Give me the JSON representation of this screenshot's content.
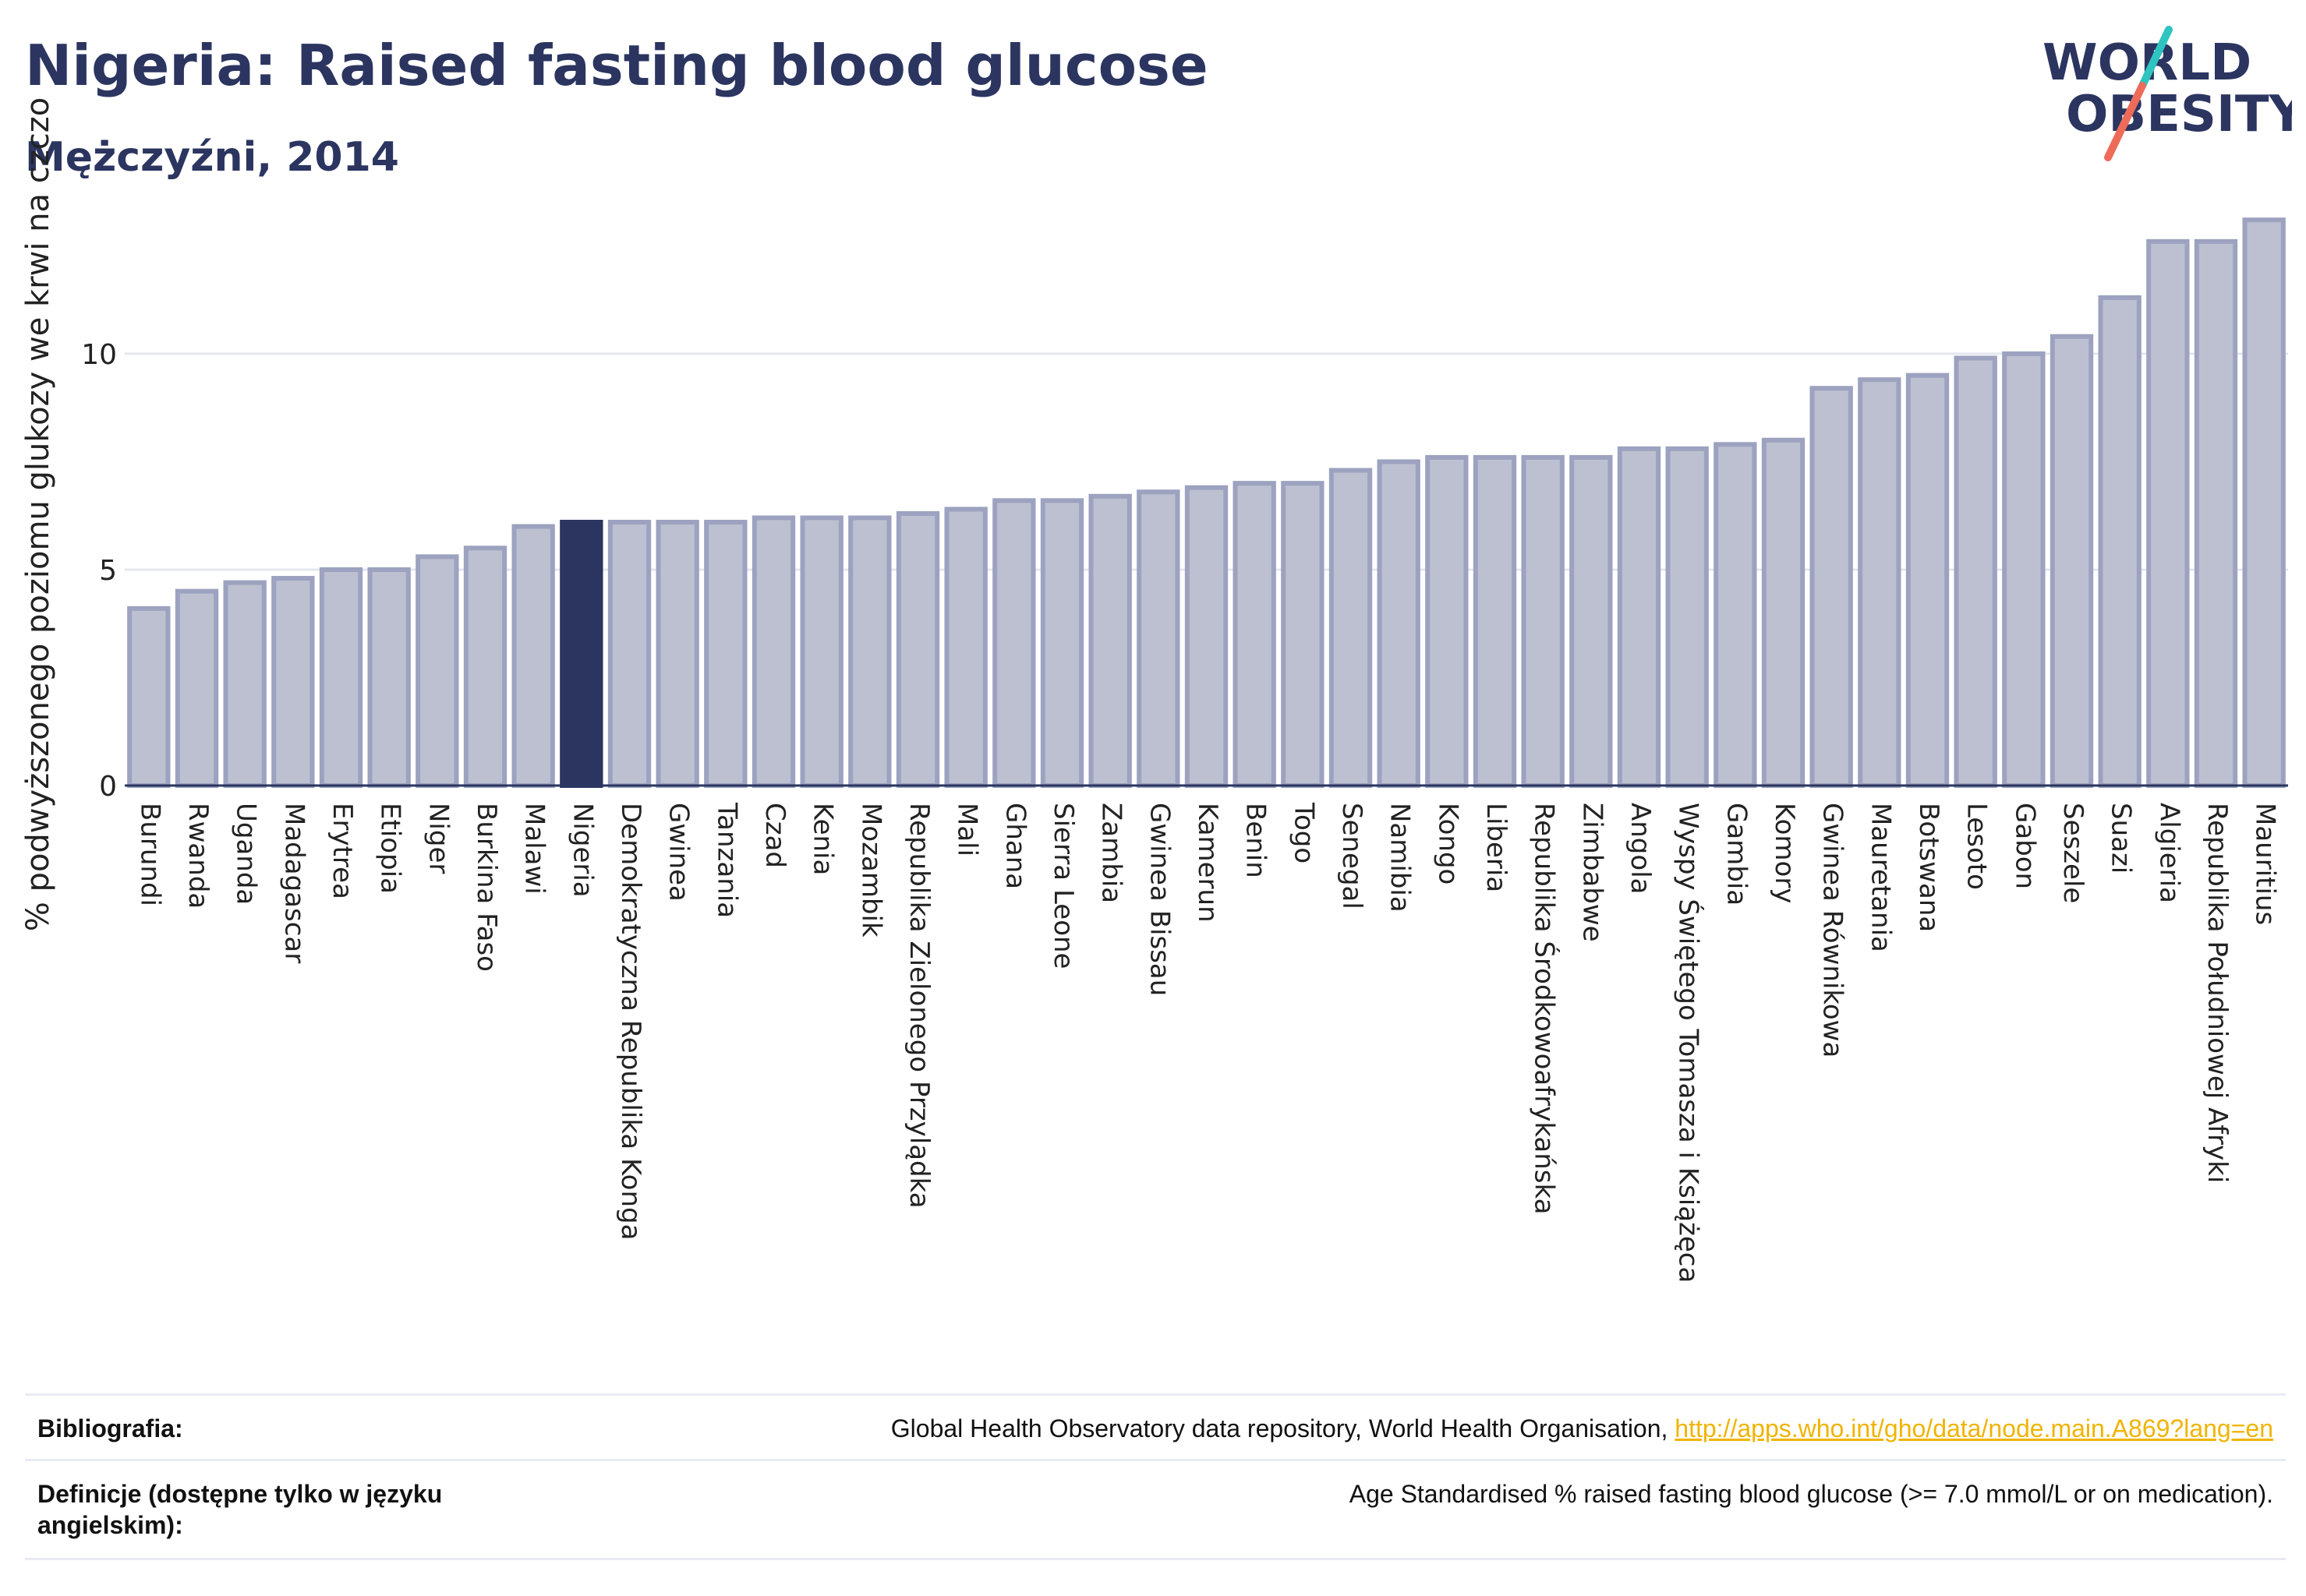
{
  "header": {
    "title": "Nigeria: Raised fasting blood glucose",
    "subtitle": "Mężczyźni, 2014",
    "logo_line1": "WORLD",
    "logo_line2": "OBESITY"
  },
  "chart_data": {
    "type": "bar",
    "ylabel": "% podwyższonego poziomu glukozy we krwi na czczo",
    "xlabel": "",
    "ylim": [
      0,
      13.5
    ],
    "yticks": [
      0,
      5,
      10
    ],
    "grid": true,
    "highlight": "Nigeria",
    "colors": {
      "bar": "#bcc0d0",
      "bar_border": "#9ca2bf",
      "highlight": "#2b3560",
      "grid": "#e4e7ef",
      "axis": "#2b3560"
    },
    "categories": [
      "Burundi",
      "Rwanda",
      "Uganda",
      "Madagascar",
      "Erytrea",
      "Etiopia",
      "Niger",
      "Burkina Faso",
      "Malawi",
      "Nigeria",
      "Demokratyczna Republika Konga",
      "Gwinea",
      "Tanzania",
      "Czad",
      "Kenia",
      "Mozambik",
      "Republika Zielonego Przylądka",
      "Mali",
      "Ghana",
      "Sierra Leone",
      "Zambia",
      "Gwinea Bissau",
      "Kamerun",
      "Benin",
      "Togo",
      "Senegal",
      "Namibia",
      "Kongo",
      "Liberia",
      "Republika Środkowoafrykańska",
      "Zimbabwe",
      "Angola",
      "Wyspy Świętego Tomasza i Książęca",
      "Gambia",
      "Komory",
      "Gwinea Równikowa",
      "Mauretania",
      "Botswana",
      "Lesoto",
      "Gabon",
      "Seszele",
      "Suazi",
      "Algieria",
      "Republika Południowej Afryki",
      "Mauritius"
    ],
    "values": [
      4.1,
      4.5,
      4.7,
      4.8,
      5.0,
      5.0,
      5.3,
      5.5,
      6.0,
      6.1,
      6.1,
      6.1,
      6.1,
      6.2,
      6.2,
      6.2,
      6.3,
      6.4,
      6.6,
      6.6,
      6.7,
      6.8,
      6.9,
      7.0,
      7.0,
      7.3,
      7.5,
      7.6,
      7.6,
      7.6,
      7.6,
      7.8,
      7.8,
      7.9,
      8.0,
      9.2,
      9.4,
      9.5,
      9.9,
      10.0,
      10.4,
      11.3,
      12.6,
      12.6,
      13.1
    ]
  },
  "footer": {
    "bibliography_label": "Bibliografia:",
    "bibliography_text": "Global Health Observatory data repository, World Health Organisation, ",
    "bibliography_link": "http://apps.who.int/gho/data/node.main.A869?lang=en",
    "definitions_label": "Definicje (dostępne tylko w języku angielskim):",
    "definitions_text": "Age Standardised % raised fasting blood glucose (>= 7.0 mmol/L or on medication)."
  }
}
